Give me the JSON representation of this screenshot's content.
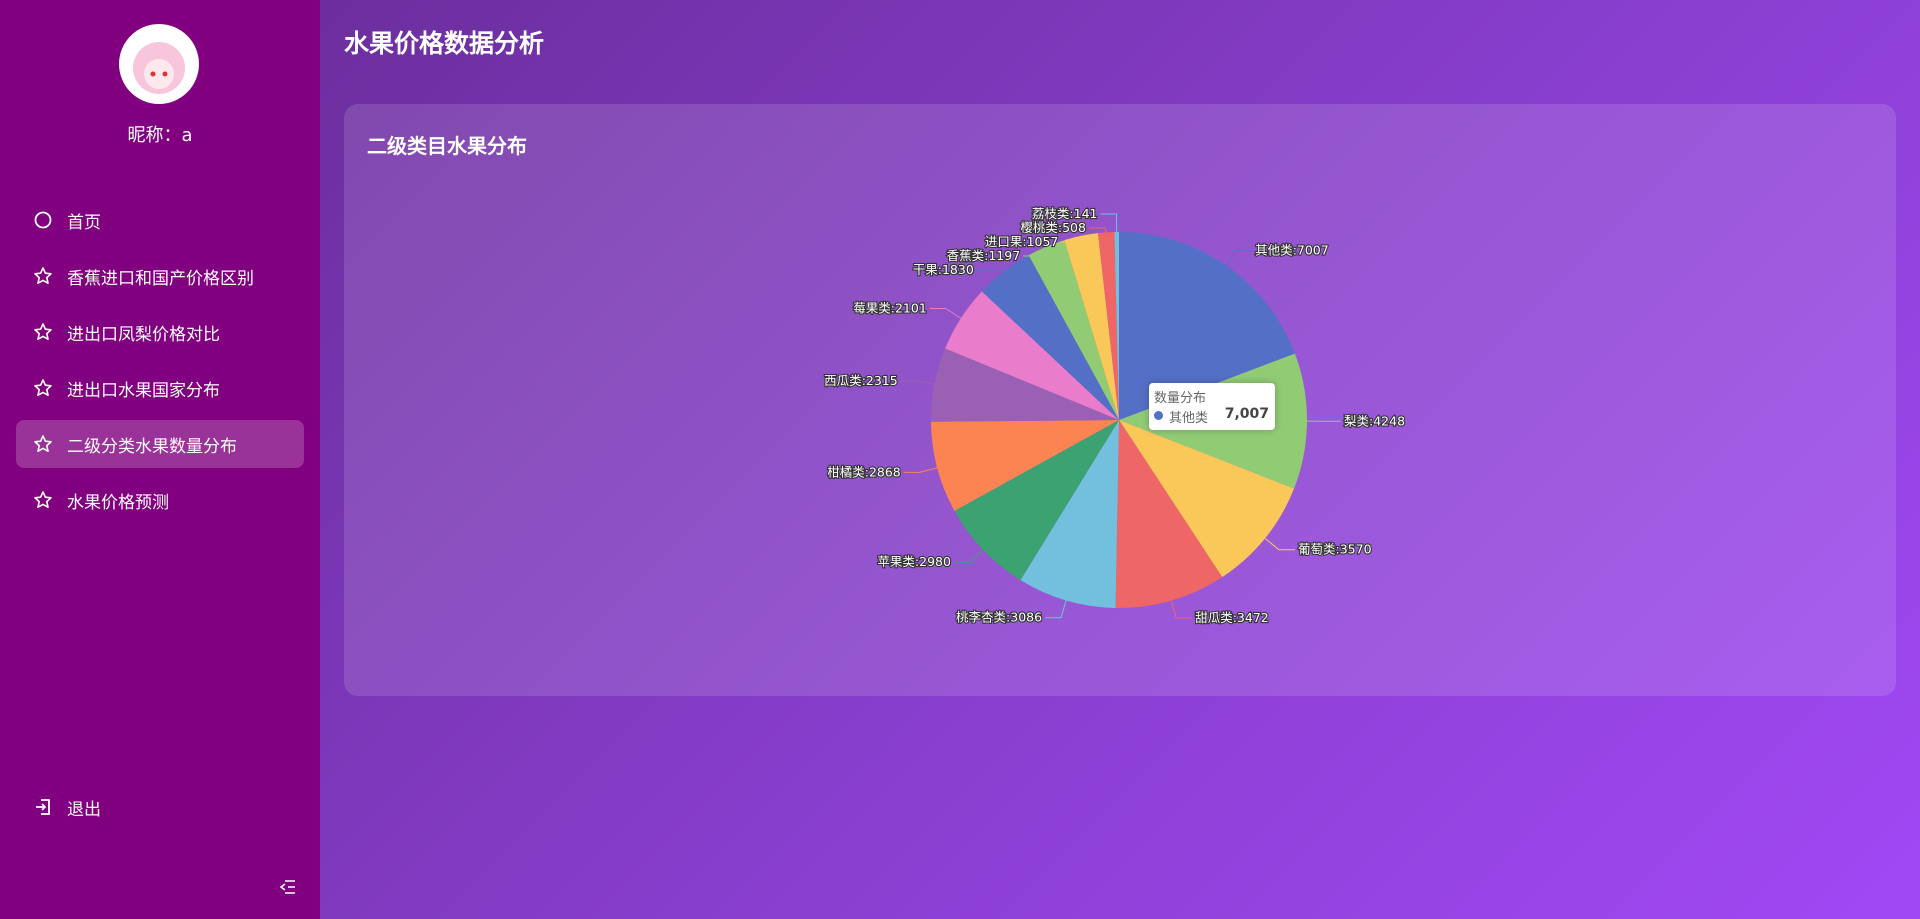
{
  "user": {
    "nickname_text": "昵称：a"
  },
  "menu": {
    "items": [
      "首页",
      "香蕉进口和国产价格区别",
      "进出口凤梨价格对比",
      "进出口水果国家分布",
      "二级分类水果数量分布",
      "水果价格预测"
    ],
    "active": 4
  },
  "logout": "退出",
  "header": {
    "title": "水果价格数据分析"
  },
  "chart_data": {
    "type": "pie",
    "title": "二级类目水果分布",
    "series_name": "数量分布",
    "label_separator": ":",
    "categories": [
      "其他类",
      "梨类",
      "葡萄类",
      "甜瓜类",
      "桃李杏类",
      "苹果类",
      "柑橘类",
      "西瓜类",
      "莓果类",
      "干果",
      "香蕉类",
      "进口果",
      "樱桃类",
      "荔枝类"
    ],
    "values": [
      7007,
      4248,
      3570,
      3472,
      3086,
      2980,
      2868,
      2315,
      2101,
      1830,
      1197,
      1057,
      508,
      141
    ],
    "colors": [
      "#5470c6",
      "#91cc75",
      "#fac858",
      "#ee6666",
      "#73c0de",
      "#3ba272",
      "#fc8452",
      "#9a60b4",
      "#ea7ccc",
      "#5470c6",
      "#91cc75",
      "#fac858",
      "#ee6666",
      "#73c0de"
    ],
    "tooltip": {
      "title": "数量分布",
      "category": "其他类",
      "value": 7007,
      "value_label": "7,007"
    }
  }
}
